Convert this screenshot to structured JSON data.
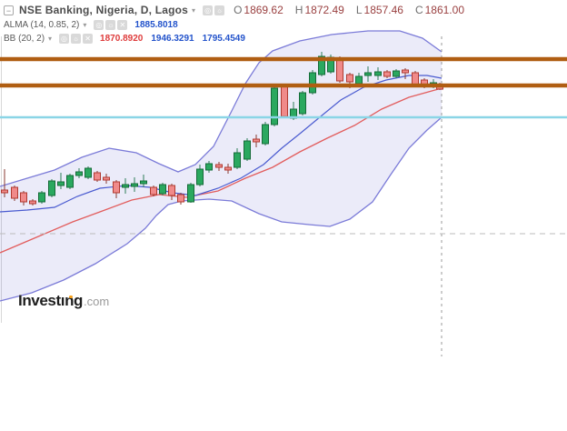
{
  "header": {
    "collapse_glyph": "−",
    "title": "NSE Banking, Nigeria, D, Lagos",
    "caret_glyph": "▾",
    "toolbar_icons": [
      "◎",
      "☼"
    ],
    "indicator_icons": [
      "◎",
      "☼",
      "✕"
    ],
    "ohlc": [
      {
        "label": "O",
        "value": "1869.62"
      },
      {
        "label": "H",
        "value": "1872.49"
      },
      {
        "label": "L",
        "value": "1857.46"
      },
      {
        "label": "C",
        "value": "1861.00"
      }
    ],
    "indicators": [
      {
        "name": "ALMA (14, 0.85, 2)",
        "values": [
          "1885.8018"
        ],
        "value_colors": [
          "#2353cb"
        ]
      },
      {
        "name": "BB (20, 2)",
        "values": [
          "1870.8920",
          "1946.3291",
          "1795.4549"
        ],
        "value_colors": [
          "#de3b3b",
          "#2353cb",
          "#2353cb"
        ]
      }
    ],
    "colors": {
      "letter_gray": "#6f6f6f",
      "value_maroon": "#9a4040"
    }
  },
  "watermark": {
    "brand": "Invest",
    "brand_i": "ı",
    "brand_end": "ng",
    "suffix": ".com"
  },
  "chart_data": {
    "type": "candlestick",
    "symbol": "NSE Banking",
    "exchange": "Lagos",
    "timeframe": "D",
    "last_bar": {
      "open": 1869.62,
      "high": 1872.49,
      "low": 1857.46,
      "close": 1861.0
    },
    "indicator_values": {
      "alma": 1885.8018,
      "bb_basis": 1870.892,
      "bb_upper": 1946.3291,
      "bb_lower": 1795.4549
    },
    "units": "pixels_624x474",
    "style": {
      "band_fill": "rgba(123,123,216,0.15)",
      "band_line": "#7b7bd8",
      "basis_line": "#e25d5d",
      "alma_line": "#4a5bd0",
      "green_fill": "#2aa85f",
      "green_stroke": "#156b38",
      "green_wick": "#2e7d57",
      "red_fill": "#f08a8a",
      "red_stroke": "#b03a30",
      "red_wick": "#8a3a30",
      "axis": "#d8d8d8"
    },
    "horizontal_lines": [
      {
        "name": "resistance-upper",
        "y": 65,
        "color": "#b05e12",
        "width": 4.5,
        "layer": "front"
      },
      {
        "name": "resistance-lower",
        "y": 94,
        "color": "#b05e12",
        "width": 4.5,
        "layer": "front"
      },
      {
        "name": "support-cyan",
        "y": 129,
        "color": "#8ad5e6",
        "width": 2.5,
        "layer": "front"
      },
      {
        "name": "dashed-level",
        "y": 257,
        "color": "#bbbbbb",
        "width": 1,
        "dash": "6,5",
        "layer": "back"
      }
    ],
    "vertical_line": {
      "x": 486,
      "y1": 40,
      "y2": 392,
      "color": "#999999",
      "dash": "3,4",
      "width": 1
    },
    "series": {
      "bb_upper": {
        "points": [
          [
            0,
            205
          ],
          [
            30,
            196
          ],
          [
            60,
            187
          ],
          [
            90,
            173
          ],
          [
            120,
            163
          ],
          [
            150,
            168
          ],
          [
            175,
            180
          ],
          [
            196,
            189
          ],
          [
            215,
            181
          ],
          [
            235,
            161
          ],
          [
            255,
            122
          ],
          [
            270,
            92
          ],
          [
            285,
            69
          ],
          [
            300,
            56
          ],
          [
            330,
            45
          ],
          [
            365,
            38
          ],
          [
            405,
            34
          ],
          [
            440,
            34
          ],
          [
            465,
            42
          ],
          [
            486,
            57
          ]
        ]
      },
      "bb_lower": {
        "points": [
          [
            0,
            331
          ],
          [
            35,
            322
          ],
          [
            70,
            308
          ],
          [
            105,
            290
          ],
          [
            140,
            268
          ],
          [
            160,
            251
          ],
          [
            172,
            237
          ],
          [
            185,
            225
          ],
          [
            200,
            221
          ],
          [
            230,
            219
          ],
          [
            255,
            221
          ],
          [
            285,
            235
          ],
          [
            310,
            244
          ],
          [
            340,
            247
          ],
          [
            363,
            249
          ],
          [
            385,
            241
          ],
          [
            410,
            222
          ],
          [
            430,
            192
          ],
          [
            450,
            163
          ],
          [
            470,
            143
          ],
          [
            486,
            129
          ]
        ]
      },
      "bb_basis": {
        "points": [
          [
            0,
            278
          ],
          [
            40,
            261
          ],
          [
            80,
            244
          ],
          [
            110,
            233
          ],
          [
            145,
            220
          ],
          [
            175,
            214
          ],
          [
            205,
            217
          ],
          [
            240,
            210
          ],
          [
            270,
            196
          ],
          [
            300,
            184
          ],
          [
            330,
            167
          ],
          [
            360,
            152
          ],
          [
            390,
            138
          ],
          [
            420,
            120
          ],
          [
            450,
            107
          ],
          [
            486,
            97
          ]
        ]
      },
      "alma": {
        "points": [
          [
            0,
            233
          ],
          [
            30,
            231
          ],
          [
            60,
            228
          ],
          [
            85,
            216
          ],
          [
            110,
            207
          ],
          [
            140,
            204
          ],
          [
            165,
            206
          ],
          [
            190,
            212
          ],
          [
            215,
            215
          ],
          [
            240,
            207
          ],
          [
            265,
            196
          ],
          [
            290,
            181
          ],
          [
            310,
            163
          ],
          [
            330,
            147
          ],
          [
            353,
            128
          ],
          [
            375,
            110
          ],
          [
            400,
            96
          ],
          [
            425,
            88
          ],
          [
            450,
            83
          ],
          [
            470,
            83
          ],
          [
            486,
            86
          ]
        ]
      },
      "candles": [
        [
          5,
          209,
          212,
          186,
          217,
          "r"
        ],
        [
          16,
          206,
          218,
          204,
          221,
          "r"
        ],
        [
          26,
          212,
          222,
          210,
          226,
          "r"
        ],
        [
          36,
          221,
          224,
          219,
          226,
          "r"
        ],
        [
          46,
          212,
          222,
          210,
          224,
          "g"
        ],
        [
          57,
          199,
          215,
          197,
          217,
          "g"
        ],
        [
          67,
          200,
          204,
          190,
          208,
          "g"
        ],
        [
          77,
          193,
          206,
          191,
          208,
          "g"
        ],
        [
          87,
          189,
          193,
          185,
          196,
          "g"
        ],
        [
          97,
          185,
          195,
          183,
          197,
          "g"
        ],
        [
          107,
          190,
          198,
          188,
          200,
          "r"
        ],
        [
          117,
          195,
          198,
          191,
          202,
          "r"
        ],
        [
          128,
          200,
          212,
          198,
          218,
          "r"
        ],
        [
          138,
          203,
          206,
          196,
          213,
          "g"
        ],
        [
          148,
          202,
          205,
          195,
          211,
          "g"
        ],
        [
          158,
          199,
          202,
          192,
          206,
          "g"
        ],
        [
          169,
          206,
          214,
          204,
          216,
          "r"
        ],
        [
          179,
          203,
          213,
          201,
          215,
          "g"
        ],
        [
          189,
          204,
          215,
          202,
          220,
          "r"
        ],
        [
          199,
          214,
          222,
          212,
          225,
          "r"
        ],
        [
          210,
          203,
          222,
          201,
          223,
          "g"
        ],
        [
          220,
          186,
          203,
          181,
          205,
          "g"
        ],
        [
          230,
          180,
          187,
          177,
          190,
          "g"
        ],
        [
          241,
          181,
          184,
          178,
          188,
          "r"
        ],
        [
          251,
          184,
          187,
          180,
          191,
          "r"
        ],
        [
          261,
          168,
          184,
          163,
          186,
          "g"
        ],
        [
          272,
          155,
          175,
          152,
          177,
          "g"
        ],
        [
          282,
          153,
          156,
          148,
          162,
          "r"
        ],
        [
          292,
          137,
          158,
          134,
          160,
          "g"
        ],
        [
          302,
          97,
          137,
          95,
          139,
          "g"
        ],
        [
          313,
          95,
          128,
          93,
          130,
          "r"
        ],
        [
          323,
          120,
          130,
          112,
          132,
          "g"
        ],
        [
          333,
          102,
          125,
          100,
          127,
          "g"
        ],
        [
          344,
          80,
          102,
          77,
          104,
          "g"
        ],
        [
          354,
          62,
          82,
          57,
          84,
          "g"
        ],
        [
          364,
          63,
          79,
          60,
          81,
          "g"
        ],
        [
          374,
          64,
          89,
          62,
          91,
          "r"
        ],
        [
          385,
          82,
          90,
          80,
          97,
          "r"
        ],
        [
          395,
          84,
          92,
          80,
          94,
          "g"
        ],
        [
          405,
          80,
          83,
          73,
          90,
          "g"
        ],
        [
          416,
          79,
          83,
          74,
          88,
          "g"
        ],
        [
          426,
          79,
          84,
          77,
          86,
          "r"
        ],
        [
          436,
          78,
          84,
          76,
          86,
          "g"
        ],
        [
          446,
          77,
          80,
          75,
          87,
          "r"
        ],
        [
          457,
          80,
          93,
          78,
          95,
          "r"
        ],
        [
          467,
          88,
          93,
          86,
          97,
          "r"
        ],
        [
          477,
          91,
          94,
          87,
          97,
          "g"
        ],
        [
          484,
          93,
          98,
          91,
          99,
          "r"
        ]
      ]
    }
  }
}
